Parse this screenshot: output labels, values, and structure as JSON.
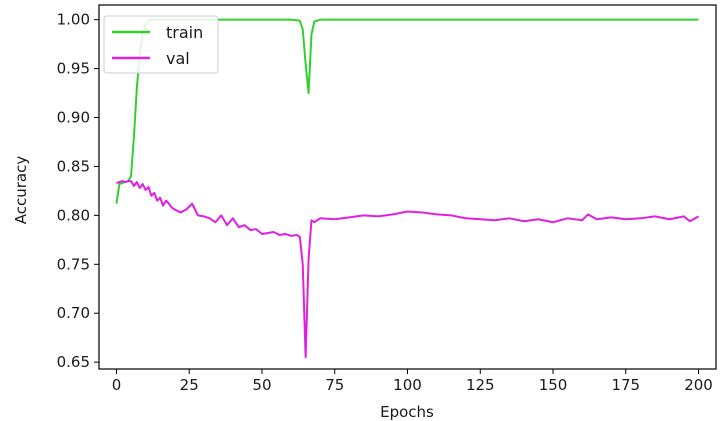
{
  "chart_data": {
    "type": "line",
    "xlabel": "Epochs",
    "ylabel": "Accuracy",
    "xlim": [
      -6,
      206
    ],
    "ylim": [
      0.643,
      1.015
    ],
    "xticks": [
      0,
      25,
      50,
      75,
      100,
      125,
      150,
      175,
      200
    ],
    "xtick_labels": [
      "0",
      "25",
      "50",
      "75",
      "100",
      "125",
      "150",
      "175",
      "200"
    ],
    "yticks": [
      0.65,
      0.7,
      0.75,
      0.8,
      0.85,
      0.9,
      0.95,
      1.0
    ],
    "ytick_labels": [
      "0.65",
      "0.70",
      "0.75",
      "0.80",
      "0.85",
      "0.90",
      "0.95",
      "1.00"
    ],
    "grid": false,
    "legend_position": "top-left",
    "series": [
      {
        "name": "train",
        "color": "#2fd02f",
        "x": [
          0,
          1,
          2,
          3,
          4,
          5,
          6,
          7,
          8,
          9,
          10,
          11,
          12,
          14,
          20,
          40,
          60,
          63,
          64,
          65,
          66,
          67,
          68,
          70,
          80,
          100,
          120,
          150,
          180,
          200
        ],
        "y": [
          0.812,
          0.832,
          0.833,
          0.834,
          0.835,
          0.84,
          0.88,
          0.93,
          0.965,
          0.985,
          0.995,
          0.999,
          1.0,
          1.0,
          1.0,
          1.0,
          1.0,
          0.999,
          0.99,
          0.955,
          0.925,
          0.985,
          0.998,
          1.0,
          1.0,
          1.0,
          1.0,
          1.0,
          1.0,
          1.0
        ]
      },
      {
        "name": "val",
        "color": "#e020e0",
        "x": [
          0,
          1,
          2,
          3,
          4,
          5,
          6,
          7,
          8,
          9,
          10,
          11,
          12,
          13,
          14,
          15,
          16,
          17,
          18,
          19,
          20,
          22,
          24,
          26,
          28,
          30,
          32,
          34,
          36,
          38,
          40,
          42,
          44,
          46,
          48,
          50,
          52,
          54,
          56,
          58,
          60,
          62,
          63,
          64,
          65,
          66,
          67,
          68,
          70,
          75,
          80,
          85,
          90,
          95,
          100,
          105,
          110,
          115,
          120,
          125,
          130,
          135,
          140,
          145,
          150,
          155,
          160,
          162,
          165,
          170,
          175,
          180,
          185,
          190,
          195,
          197,
          200
        ],
        "y": [
          0.833,
          0.834,
          0.835,
          0.834,
          0.835,
          0.835,
          0.83,
          0.834,
          0.828,
          0.832,
          0.826,
          0.829,
          0.82,
          0.823,
          0.815,
          0.818,
          0.81,
          0.815,
          0.812,
          0.808,
          0.806,
          0.803,
          0.806,
          0.812,
          0.8,
          0.799,
          0.797,
          0.793,
          0.8,
          0.79,
          0.797,
          0.788,
          0.79,
          0.785,
          0.786,
          0.781,
          0.782,
          0.783,
          0.78,
          0.781,
          0.779,
          0.78,
          0.778,
          0.75,
          0.655,
          0.755,
          0.795,
          0.793,
          0.797,
          0.796,
          0.798,
          0.8,
          0.799,
          0.801,
          0.804,
          0.803,
          0.801,
          0.8,
          0.797,
          0.796,
          0.795,
          0.797,
          0.794,
          0.796,
          0.793,
          0.797,
          0.795,
          0.801,
          0.796,
          0.798,
          0.796,
          0.797,
          0.799,
          0.796,
          0.799,
          0.794,
          0.799
        ]
      }
    ]
  }
}
